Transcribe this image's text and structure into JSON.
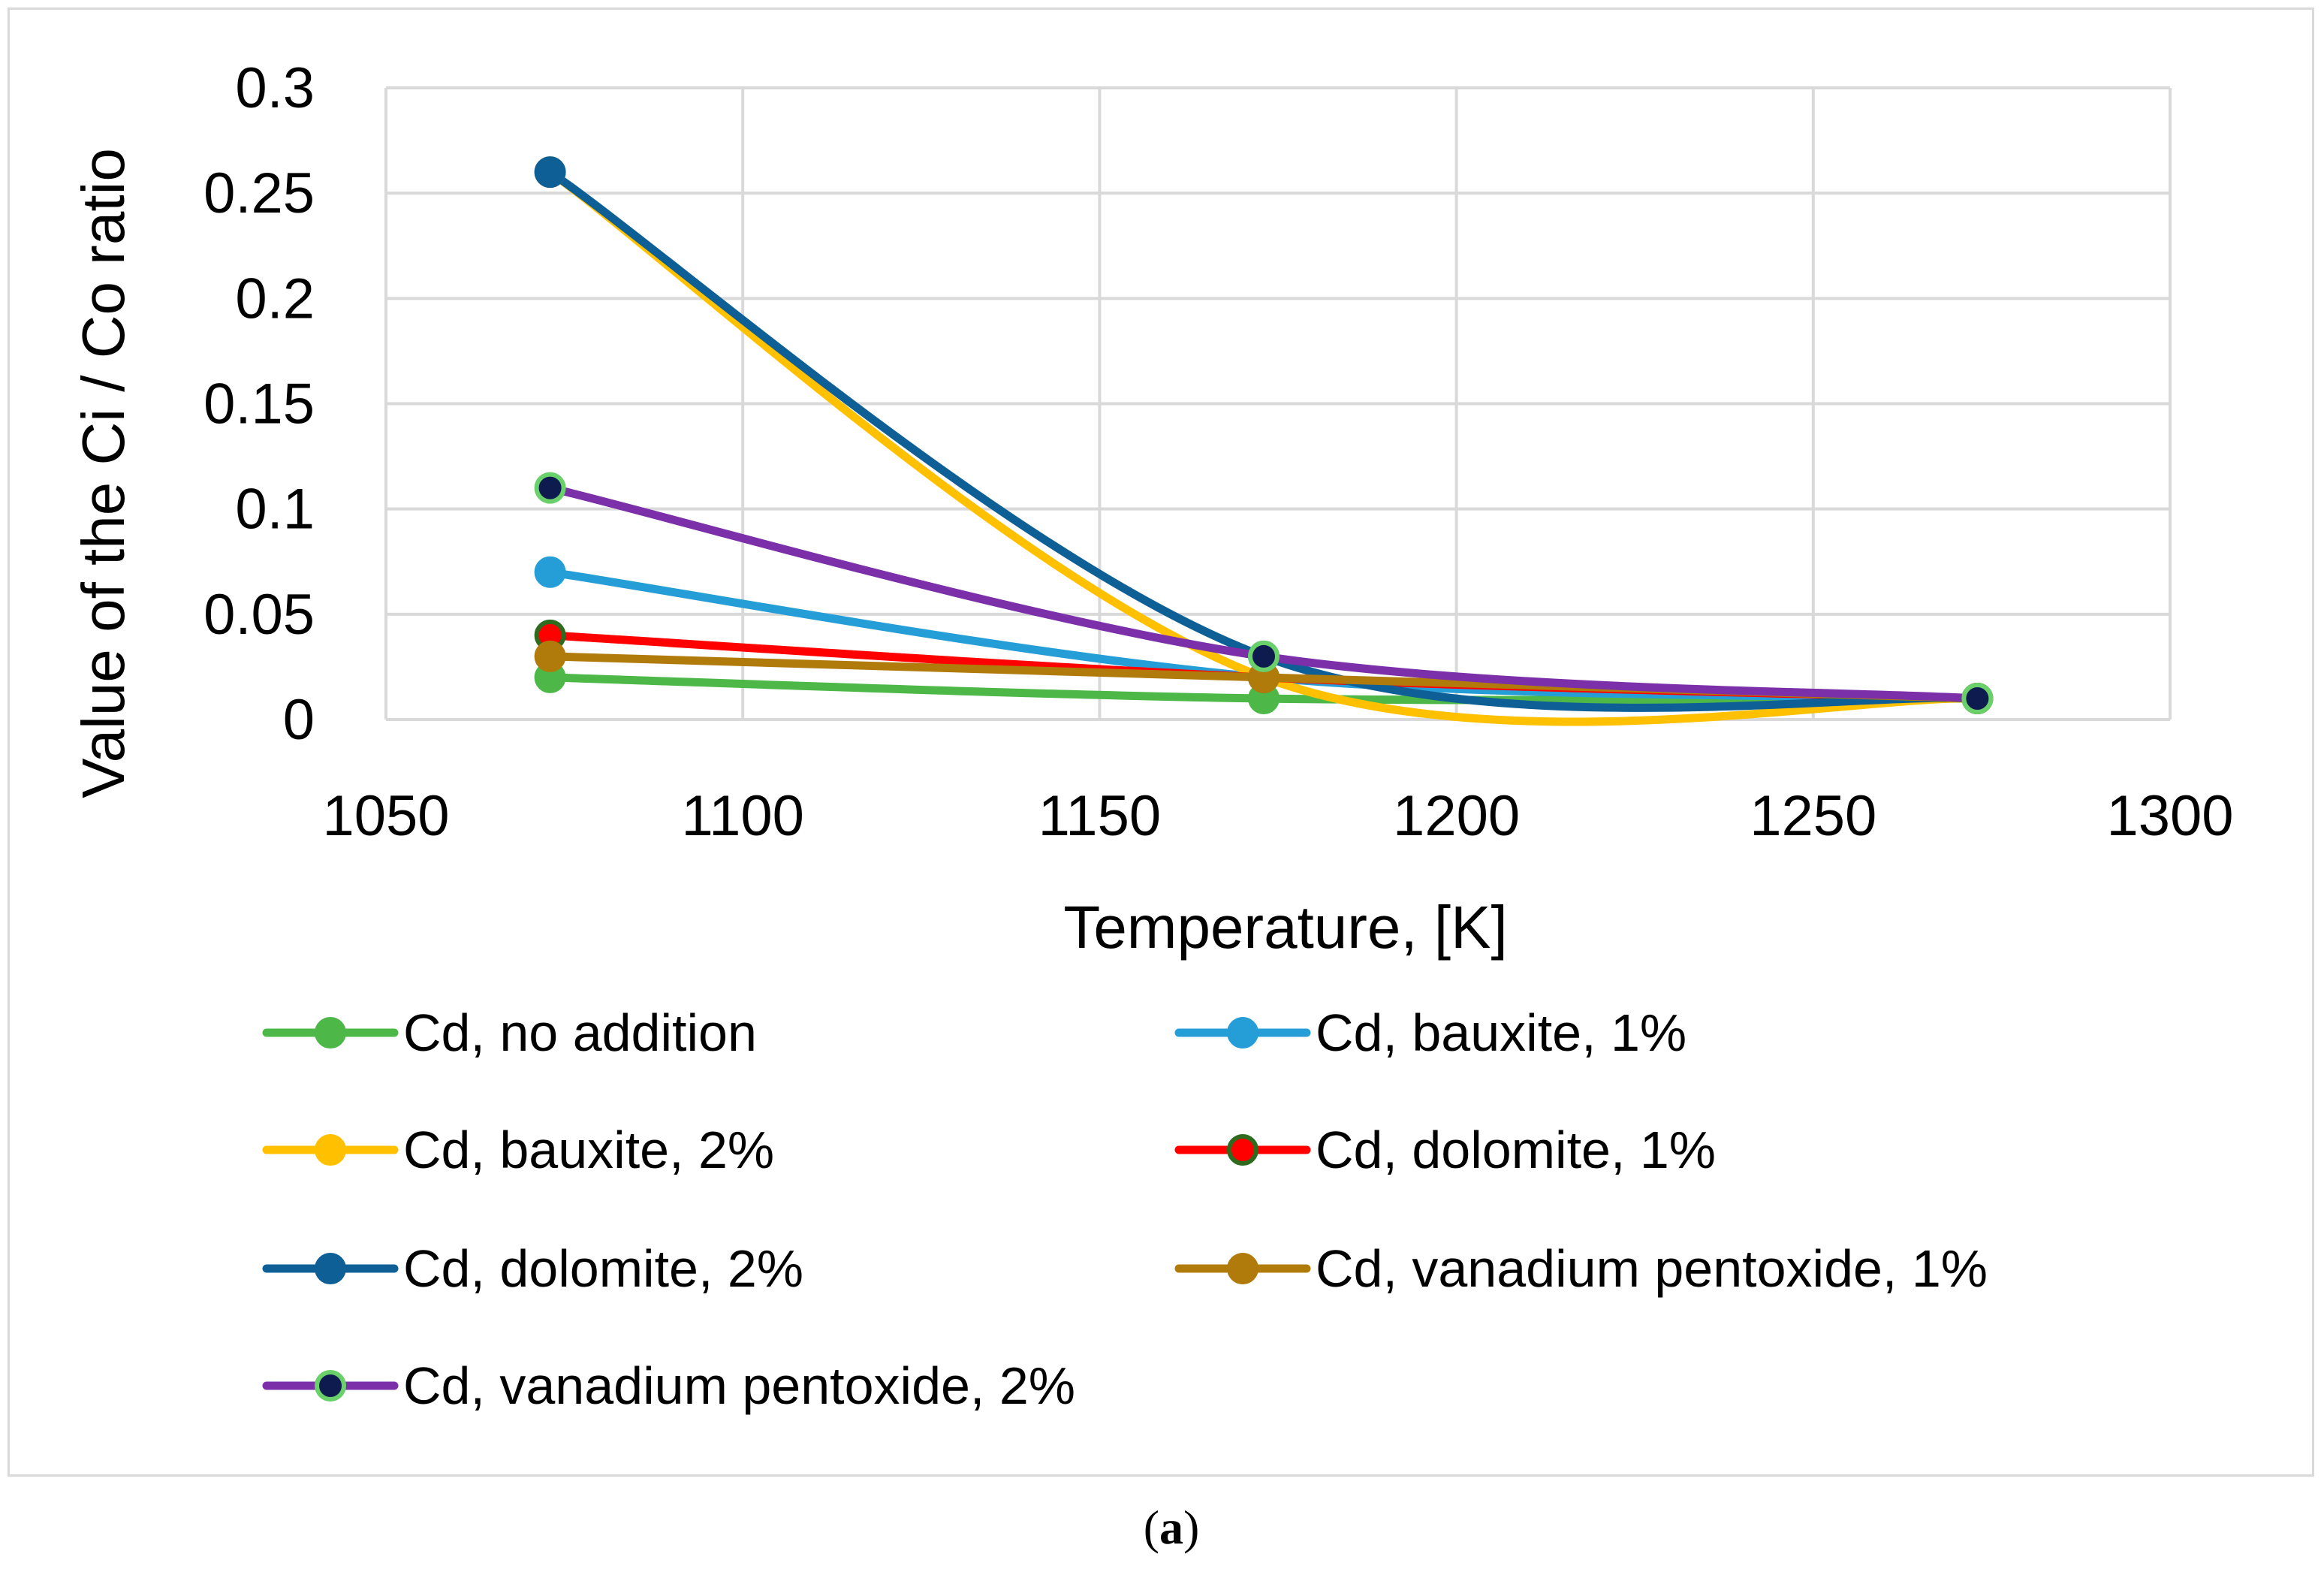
{
  "chart_data": {
    "type": "line",
    "xlabel": "Temperature, [K]",
    "ylabel": "Value of the Ci / Co ratio",
    "xlim": [
      1050,
      1300
    ],
    "ylim": [
      0,
      0.3
    ],
    "x_ticks": [
      "1050",
      "1100",
      "1150",
      "1200",
      "1250",
      "1300"
    ],
    "y_ticks": [
      "0",
      "0.05",
      "0.1",
      "0.15",
      "0.2",
      "0.25",
      "0.3"
    ],
    "grid": true,
    "smooth": true,
    "legend_position": "bottom",
    "x": [
      1073,
      1173,
      1273
    ],
    "series": [
      {
        "name": "Cd, no addition",
        "values": [
          0.02,
          0.01,
          0.01
        ],
        "color": "#4db848",
        "marker_fill": "#4db848",
        "marker_edge": "#4db848"
      },
      {
        "name": "Cd, bauxite, 1%",
        "values": [
          0.07,
          0.02,
          0.01
        ],
        "color": "#259ed8",
        "marker_fill": "#259ed8",
        "marker_edge": "#259ed8"
      },
      {
        "name": "Cd, bauxite, 2%",
        "values": [
          0.26,
          0.02,
          0.01
        ],
        "color": "#ffc000",
        "marker_fill": "#ffc000",
        "marker_edge": "#ffc000"
      },
      {
        "name": "Cd, dolomite, 1%",
        "values": [
          0.04,
          0.02,
          0.01
        ],
        "color": "#ff0000",
        "marker_fill": "#ff0000",
        "marker_edge": "#2e6b1f"
      },
      {
        "name": "Cd, dolomite, 2%",
        "values": [
          0.26,
          0.03,
          0.01
        ],
        "color": "#0e5f95",
        "marker_fill": "#0e5f95",
        "marker_edge": "#0e5f95"
      },
      {
        "name": "Cd, vanadium pentoxide, 1%",
        "values": [
          0.03,
          0.02,
          0.01
        ],
        "color": "#b07b0a",
        "marker_fill": "#b07b0a",
        "marker_edge": "#b07b0a"
      },
      {
        "name": "Cd, vanadium pentoxide, 2%",
        "values": [
          0.11,
          0.03,
          0.01
        ],
        "color": "#7b2fa8",
        "marker_fill": "#0d1b4f",
        "marker_edge": "#6ad06a"
      }
    ]
  },
  "caption": {
    "open": "(",
    "letter": "a",
    "close": ")"
  }
}
